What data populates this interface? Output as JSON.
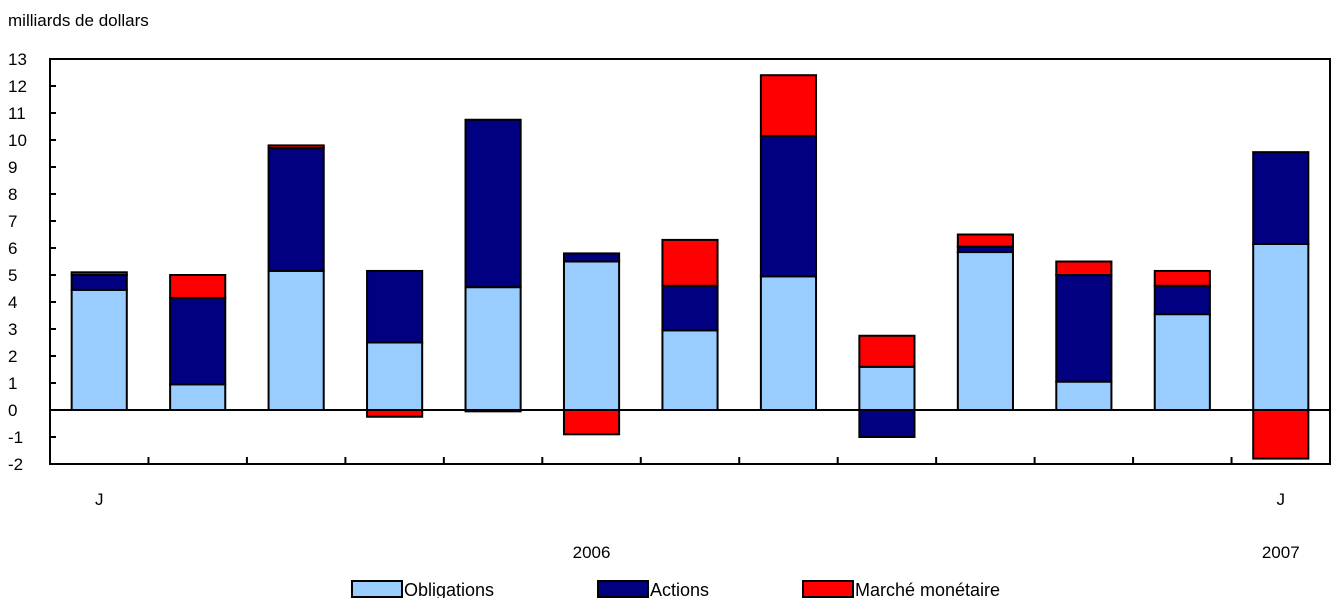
{
  "chart_data": {
    "type": "bar",
    "stacked": true,
    "unit_label": "milliards de dollars",
    "categories": [
      "J",
      "",
      "",
      "",
      "",
      "",
      "",
      "",
      "",
      "",
      "",
      "",
      "J"
    ],
    "x_year_labels": [
      {
        "category_index": 5,
        "label": "2006"
      },
      {
        "category_index": 12,
        "label": "2007"
      }
    ],
    "series": [
      {
        "name": "Obligations",
        "color": "#99ccff",
        "values": [
          4.45,
          0.95,
          5.15,
          2.5,
          4.55,
          5.5,
          2.95,
          4.95,
          1.6,
          5.85,
          1.05,
          3.55,
          6.15
        ]
      },
      {
        "name": "Actions",
        "color": "#000080",
        "values": [
          0.55,
          3.2,
          4.55,
          2.65,
          6.2,
          0.3,
          1.65,
          5.2,
          -1.0,
          0.2,
          3.95,
          1.05,
          3.4
        ]
      },
      {
        "name": "Marché monétaire",
        "color": "#ff0000",
        "values": [
          0.1,
          0.85,
          0.1,
          -0.25,
          -0.05,
          -0.9,
          1.7,
          2.25,
          1.15,
          0.45,
          0.5,
          0.55,
          -1.8
        ]
      }
    ],
    "ylim": [
      -2,
      13
    ],
    "y_ticks": [
      -2,
      -1,
      0,
      1,
      2,
      3,
      4,
      5,
      6,
      7,
      8,
      9,
      10,
      11,
      12,
      13
    ],
    "legend_position": "bottom",
    "grid": false
  }
}
